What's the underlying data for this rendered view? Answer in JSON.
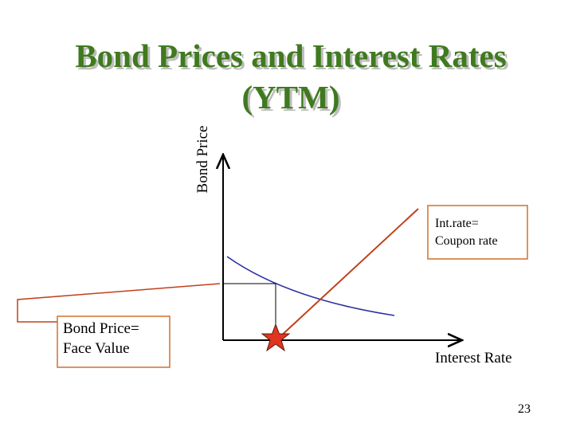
{
  "title": {
    "lines": [
      "Bond Prices and Interest Rates",
      "(YTM)"
    ]
  },
  "axes": {
    "y_label": "Bond Price",
    "x_label": "Interest Rate"
  },
  "callouts": {
    "coupon": {
      "lines": [
        "Int.rate=",
        "Coupon rate"
      ]
    },
    "face_value": {
      "lines": [
        "Bond Price=",
        "Face Value"
      ]
    }
  },
  "page_number": "23"
}
